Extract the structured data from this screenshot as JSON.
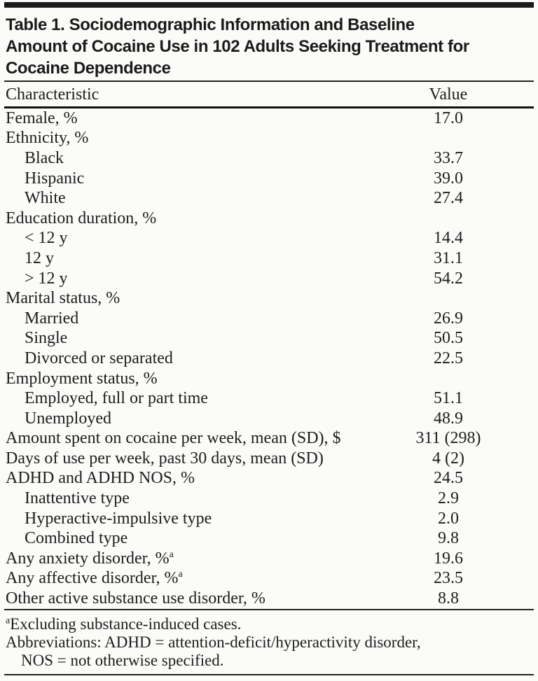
{
  "table": {
    "title_lines": [
      "Table 1. Sociodemographic Information and Baseline",
      "Amount of Cocaine Use in 102 Adults Seeking Treatment for",
      "Cocaine Dependence"
    ],
    "columns": {
      "characteristic": "Characteristic",
      "value": "Value"
    },
    "rows": [
      {
        "label": "Female, %",
        "value": "17.0",
        "indent": 0
      },
      {
        "label": "Ethnicity, %",
        "value": "",
        "indent": 0
      },
      {
        "label": "Black",
        "value": "33.7",
        "indent": 1
      },
      {
        "label": "Hispanic",
        "value": "39.0",
        "indent": 1
      },
      {
        "label": "White",
        "value": "27.4",
        "indent": 1
      },
      {
        "label": "Education duration, %",
        "value": "",
        "indent": 0
      },
      {
        "label": "< 12 y",
        "value": "14.4",
        "indent": 1
      },
      {
        "label": "12 y",
        "value": "31.1",
        "indent": 1
      },
      {
        "label": "> 12 y",
        "value": "54.2",
        "indent": 1
      },
      {
        "label": "Marital status, %",
        "value": "",
        "indent": 0
      },
      {
        "label": "Married",
        "value": "26.9",
        "indent": 1
      },
      {
        "label": "Single",
        "value": "50.5",
        "indent": 1
      },
      {
        "label": "Divorced or separated",
        "value": "22.5",
        "indent": 1
      },
      {
        "label": "Employment status, %",
        "value": "",
        "indent": 0
      },
      {
        "label": "Employed, full or part time",
        "value": "51.1",
        "indent": 1
      },
      {
        "label": "Unemployed",
        "value": "48.9",
        "indent": 1
      },
      {
        "label": "Amount spent on cocaine per week, mean (SD), $",
        "value": "311 (298)",
        "indent": 0
      },
      {
        "label": "Days of use per week, past 30 days, mean (SD)",
        "value": "4 (2)",
        "indent": 0
      },
      {
        "label": "ADHD and ADHD NOS, %",
        "value": "24.5",
        "indent": 0
      },
      {
        "label": "Inattentive type",
        "value": "2.9",
        "indent": 1
      },
      {
        "label": "Hyperactive-impulsive type",
        "value": "2.0",
        "indent": 1
      },
      {
        "label": "Combined type",
        "value": "9.8",
        "indent": 1
      },
      {
        "label": "Any anxiety disorder, %",
        "sup": "a",
        "value": "19.6",
        "indent": 0
      },
      {
        "label": "Any affective disorder, %",
        "sup": "a",
        "value": "23.5",
        "indent": 0
      },
      {
        "label": "Other active substance use disorder, %",
        "value": "8.8",
        "indent": 0
      }
    ],
    "footnotes": {
      "a_marker": "a",
      "a_text": "Excluding substance-induced cases.",
      "abbrev_line1": "Abbreviations: ADHD = attention-deficit/hyperactivity disorder,",
      "abbrev_line2": "NOS = not otherwise specified."
    }
  },
  "colors": {
    "text": "#1d1d1d",
    "rule": "#111111",
    "background": "#fbfbf9"
  }
}
